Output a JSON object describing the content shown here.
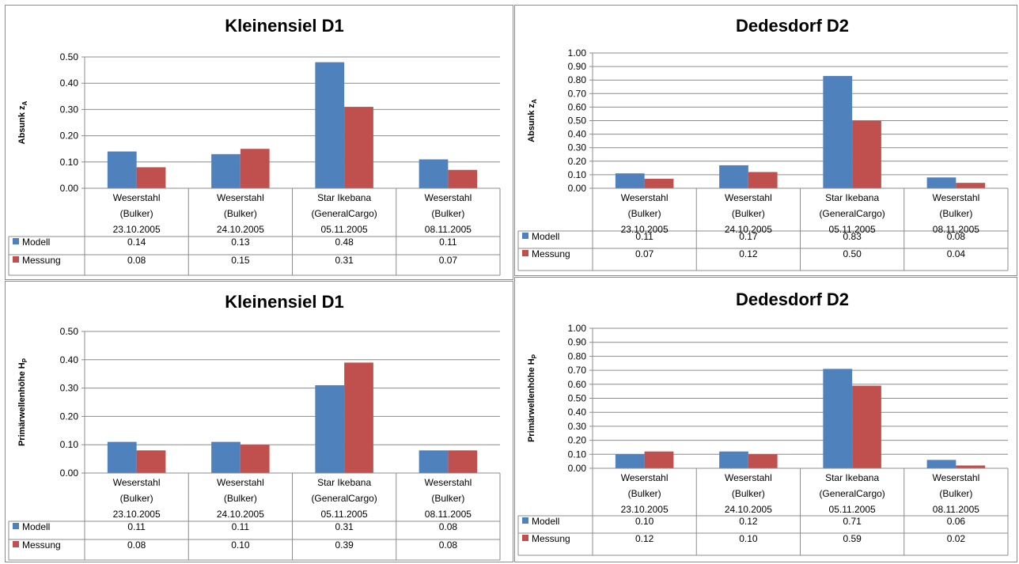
{
  "colors": {
    "modell": "#4f81bd",
    "messung": "#c0504d",
    "grid": "#8c8c8c",
    "border": "#8c8c8c"
  },
  "chart_data": [
    {
      "type": "bar",
      "title": "Kleinensiel D1",
      "ylabel_main": "Absunk z",
      "ylabel_sub": "A",
      "ylim": [
        0,
        0.5
      ],
      "yticks": [
        "0.00",
        "0.10",
        "0.20",
        "0.30",
        "0.40",
        "0.50"
      ],
      "categories": [
        [
          "Weserstahl",
          "(Bulker)",
          "23.10.2005"
        ],
        [
          "Weserstahl",
          "(Bulker)",
          "24.10.2005"
        ],
        [
          "Star Ikebana",
          "(GeneralCargo)",
          "05.11.2005"
        ],
        [
          "Weserstahl",
          "(Bulker)",
          "08.11.2005"
        ]
      ],
      "series": [
        {
          "name": "Modell",
          "values": [
            0.14,
            0.13,
            0.48,
            0.11
          ],
          "labels": [
            "0.14",
            "0.13",
            "0.48",
            "0.11"
          ]
        },
        {
          "name": "Messung",
          "values": [
            0.08,
            0.15,
            0.31,
            0.07
          ],
          "labels": [
            "0.08",
            "0.15",
            "0.31",
            "0.07"
          ]
        }
      ],
      "legend": "data-table"
    },
    {
      "type": "bar",
      "title": "Dedesdorf D2",
      "ylabel_main": "Absunk z",
      "ylabel_sub": "A",
      "ylim": [
        0,
        1.0
      ],
      "yticks": [
        "0.00",
        "0.10",
        "0.20",
        "0.30",
        "0.40",
        "0.50",
        "0.60",
        "0.70",
        "0.80",
        "0.90",
        "1.00"
      ],
      "categories": [
        [
          "Weserstahl",
          "(Bulker)",
          "23.10.2005"
        ],
        [
          "Weserstahl",
          "(Bulker)",
          "24.10.2005"
        ],
        [
          "Star Ikebana",
          "(GeneralCargo)",
          "05.11.2005"
        ],
        [
          "Weserstahl",
          "(Bulker)",
          "08.11.2005"
        ]
      ],
      "series": [
        {
          "name": "Modell",
          "values": [
            0.11,
            0.17,
            0.83,
            0.08
          ],
          "labels": [
            "0.11",
            "0.17",
            "0.83",
            "0.08"
          ]
        },
        {
          "name": "Messung",
          "values": [
            0.07,
            0.12,
            0.5,
            0.04
          ],
          "labels": [
            "0.07",
            "0.12",
            "0.50",
            "0.04"
          ]
        }
      ],
      "legend": "data-table"
    },
    {
      "type": "bar",
      "title": "Kleinensiel D1",
      "ylabel_main": "Primärwellenhöhe H",
      "ylabel_sub": "P",
      "ylim": [
        0,
        0.5
      ],
      "yticks": [
        "0.00",
        "0.10",
        "0.20",
        "0.30",
        "0.40",
        "0.50"
      ],
      "categories": [
        [
          "Weserstahl",
          "(Bulker)",
          "23.10.2005"
        ],
        [
          "Weserstahl",
          "(Bulker)",
          "24.10.2005"
        ],
        [
          "Star Ikebana",
          "(GeneralCargo)",
          "05.11.2005"
        ],
        [
          "Weserstahl",
          "(Bulker)",
          "08.11.2005"
        ]
      ],
      "series": [
        {
          "name": "Modell",
          "values": [
            0.11,
            0.11,
            0.31,
            0.08
          ],
          "labels": [
            "0.11",
            "0.11",
            "0.31",
            "0.08"
          ]
        },
        {
          "name": "Messung",
          "values": [
            0.08,
            0.1,
            0.39,
            0.08
          ],
          "labels": [
            "0.08",
            "0.10",
            "0.39",
            "0.08"
          ]
        }
      ],
      "legend": "data-table"
    },
    {
      "type": "bar",
      "title": "Dedesdorf D2",
      "ylabel_main": "Primärwellenhöhe H",
      "ylabel_sub": "P",
      "ylim": [
        0,
        1.0
      ],
      "yticks": [
        "0.00",
        "0.10",
        "0.20",
        "0.30",
        "0.40",
        "0.50",
        "0.60",
        "0.70",
        "0.80",
        "0.90",
        "1.00"
      ],
      "categories": [
        [
          "Weserstahl",
          "(Bulker)",
          "23.10.2005"
        ],
        [
          "Weserstahl",
          "(Bulker)",
          "24.10.2005"
        ],
        [
          "Star Ikebana",
          "(GeneralCargo)",
          "05.11.2005"
        ],
        [
          "Weserstahl",
          "(Bulker)",
          "08.11.2005"
        ]
      ],
      "series": [
        {
          "name": "Modell",
          "values": [
            0.1,
            0.12,
            0.71,
            0.06
          ],
          "labels": [
            "0.10",
            "0.12",
            "0.71",
            "0.06"
          ]
        },
        {
          "name": "Messung",
          "values": [
            0.12,
            0.1,
            0.59,
            0.02
          ],
          "labels": [
            "0.12",
            "0.10",
            "0.59",
            "0.02"
          ]
        }
      ],
      "legend": "data-table"
    }
  ]
}
